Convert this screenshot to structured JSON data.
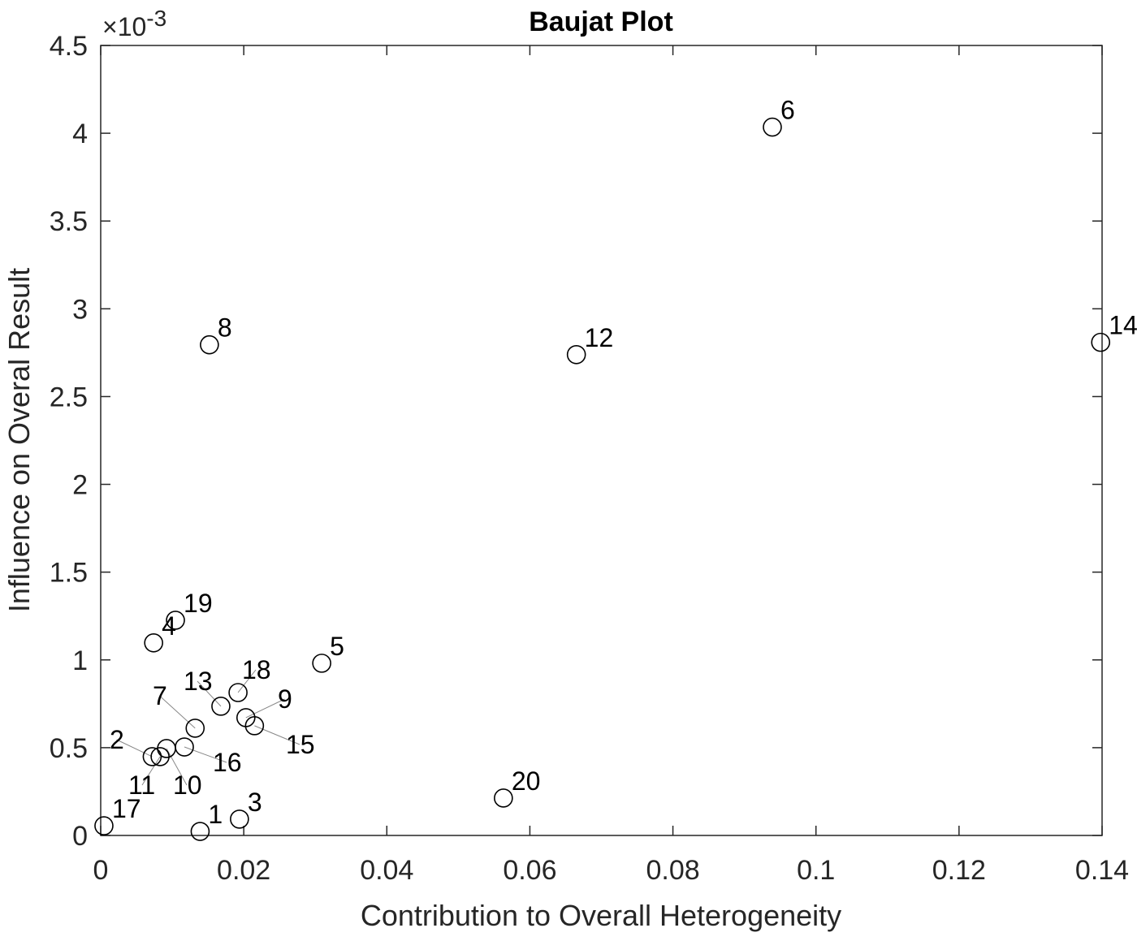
{
  "chart_data": {
    "type": "scatter",
    "title": "Baujat Plot",
    "xlabel": "Contribution to Overall Heterogeneity",
    "ylabel": "Influence on Overal Result",
    "y_multiplier_label": "×10",
    "y_multiplier_exponent": "-3",
    "xlim": [
      0,
      0.14
    ],
    "ylim": [
      0,
      0.0045
    ],
    "xticks": [
      "0",
      "0.02",
      "0.04",
      "0.06",
      "0.08",
      "0.1",
      "0.12",
      "0.14"
    ],
    "yticks": [
      "0",
      "0.5",
      "1",
      "1.5",
      "2",
      "2.5",
      "3",
      "3.5",
      "4",
      "4.5"
    ],
    "grid": false,
    "marker": "open-circle",
    "points": [
      {
        "label": "1",
        "x": 0.0139,
        "y": 2.3e-05
      },
      {
        "label": "2",
        "x": 0.0072,
        "y": 0.000449
      },
      {
        "label": "3",
        "x": 0.0194,
        "y": 9.3e-05
      },
      {
        "label": "4",
        "x": 0.0074,
        "y": 0.001097
      },
      {
        "label": "5",
        "x": 0.0309,
        "y": 0.000981
      },
      {
        "label": "6",
        "x": 0.0939,
        "y": 0.004035
      },
      {
        "label": "7",
        "x": 0.0132,
        "y": 0.000611
      },
      {
        "label": "8",
        "x": 0.0152,
        "y": 0.002795
      },
      {
        "label": "9",
        "x": 0.0203,
        "y": 0.000671
      },
      {
        "label": "10",
        "x": 0.0092,
        "y": 0.000495
      },
      {
        "label": "11",
        "x": 0.0083,
        "y": 0.000449
      },
      {
        "label": "12",
        "x": 0.0665,
        "y": 0.002739
      },
      {
        "label": "13",
        "x": 0.0168,
        "y": 0.000736
      },
      {
        "label": "14",
        "x": 0.1398,
        "y": 0.002809
      },
      {
        "label": "15",
        "x": 0.0215,
        "y": 0.000625
      },
      {
        "label": "16",
        "x": 0.0117,
        "y": 0.000504
      },
      {
        "label": "17",
        "x": 0.00045,
        "y": 5.5e-05
      },
      {
        "label": "18",
        "x": 0.0192,
        "y": 0.000814
      },
      {
        "label": "19",
        "x": 0.01045,
        "y": 0.001226
      },
      {
        "label": "20",
        "x": 0.0563,
        "y": 0.000213
      }
    ]
  }
}
